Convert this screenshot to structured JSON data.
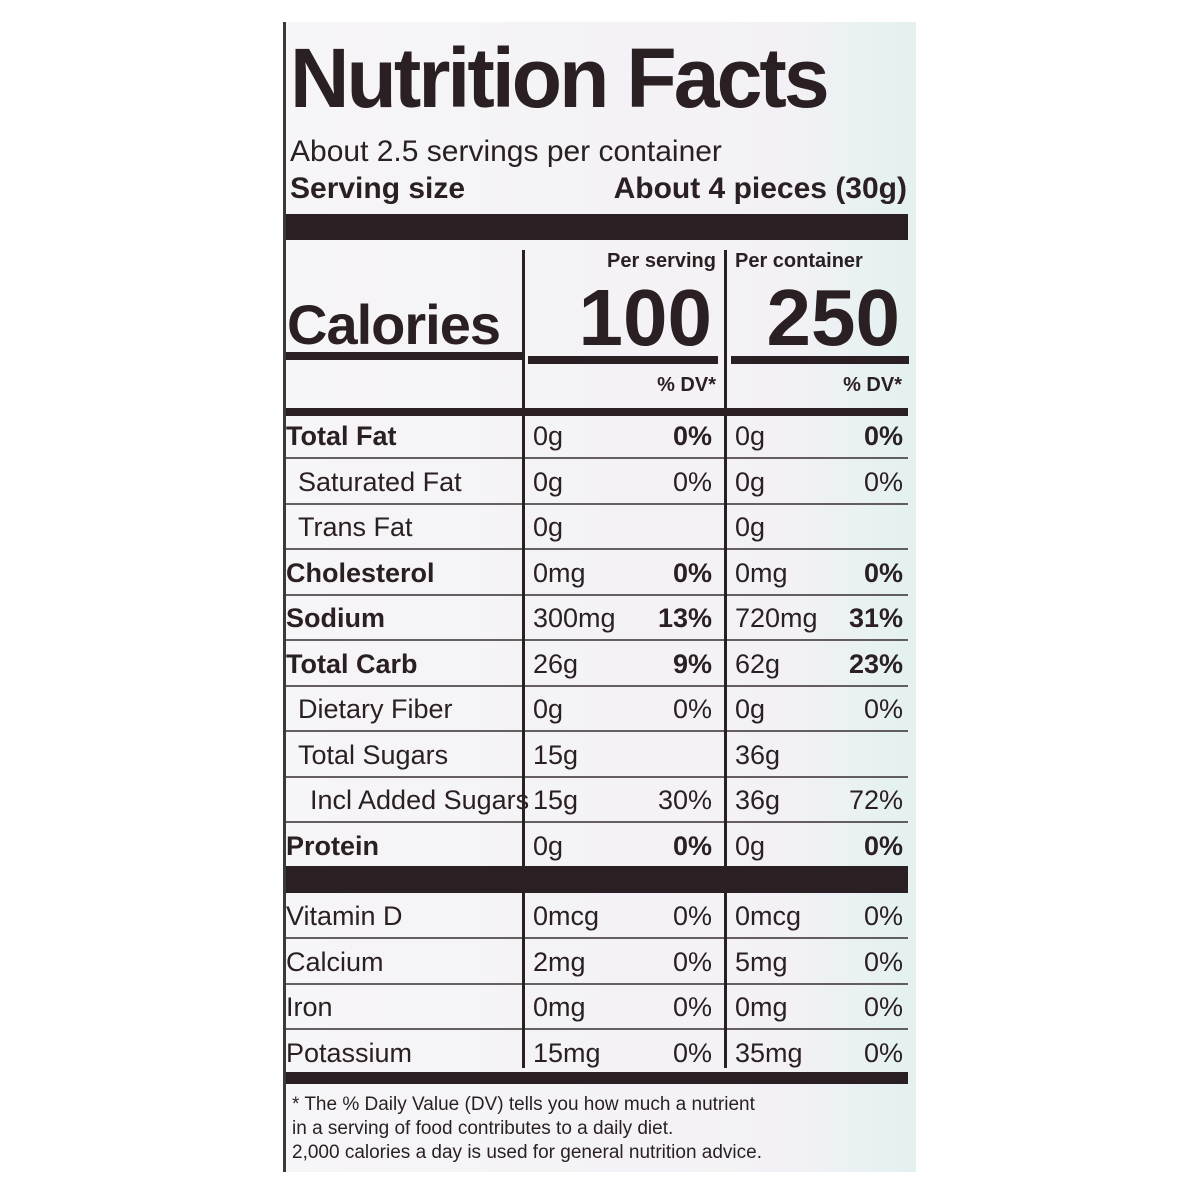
{
  "title": "Nutrition Facts",
  "servings": "About 2.5 servings per container",
  "serving_size": {
    "label": "Serving size",
    "value": "About 4 pieces (30g)"
  },
  "columns": [
    "Per serving",
    "Per container"
  ],
  "calories": {
    "label": "Calories",
    "values": [
      "100",
      "250"
    ]
  },
  "dv_header": [
    "% DV*",
    "% DV*"
  ],
  "nutrients": [
    {
      "label": "Total Fat",
      "bold": true,
      "serving": [
        "0g",
        "0%"
      ],
      "container": [
        "0g",
        "0%"
      ]
    },
    {
      "label": "Saturated Fat",
      "indent": 1,
      "serving": [
        "0g",
        "0%"
      ],
      "container": [
        "0g",
        "0%"
      ]
    },
    {
      "label": "Trans Fat",
      "indent": 1,
      "serving": [
        "0g"
      ],
      "container": [
        "0g"
      ]
    },
    {
      "label": "Cholesterol",
      "bold": true,
      "serving": [
        "0mg",
        "0%"
      ],
      "container": [
        "0mg",
        "0%"
      ]
    },
    {
      "label": "Sodium",
      "bold": true,
      "serving": [
        "300mg",
        "13%"
      ],
      "container": [
        "720mg",
        "31%"
      ]
    },
    {
      "label": "Total Carb",
      "bold": true,
      "serving": [
        "26g",
        "9%"
      ],
      "container": [
        "62g",
        "23%"
      ]
    },
    {
      "label": "Dietary Fiber",
      "indent": 1,
      "serving": [
        "0g",
        "0%"
      ],
      "container": [
        "0g",
        "0%"
      ]
    },
    {
      "label": "Total Sugars",
      "indent": 1,
      "serving": [
        "15g"
      ],
      "container": [
        "36g"
      ]
    },
    {
      "label": "Incl Added Sugars",
      "indent": 2,
      "serving": [
        "15g",
        "30%"
      ],
      "container": [
        "36g",
        "72%"
      ]
    },
    {
      "label": "Protein",
      "bold": true,
      "serving": [
        "0g",
        "0%"
      ],
      "container": [
        "0g",
        "0%"
      ]
    }
  ],
  "vitamins": [
    {
      "label": "Vitamin D",
      "serving": [
        "0mcg",
        "0%"
      ],
      "container": [
        "0mcg",
        "0%"
      ]
    },
    {
      "label": "Calcium",
      "serving": [
        "2mg",
        "0%"
      ],
      "container": [
        "5mg",
        "0%"
      ]
    },
    {
      "label": "Iron",
      "serving": [
        "0mg",
        "0%"
      ],
      "container": [
        "0mg",
        "0%"
      ]
    },
    {
      "label": "Potassium",
      "serving": [
        "15mg",
        "0%"
      ],
      "container": [
        "35mg",
        "0%"
      ]
    }
  ],
  "footnote": [
    "* The % Daily Value (DV) tells you how much a nutrient",
    "in a serving of food contributes to a daily diet.",
    "2,000 calories a day is used for general nutrition advice."
  ]
}
